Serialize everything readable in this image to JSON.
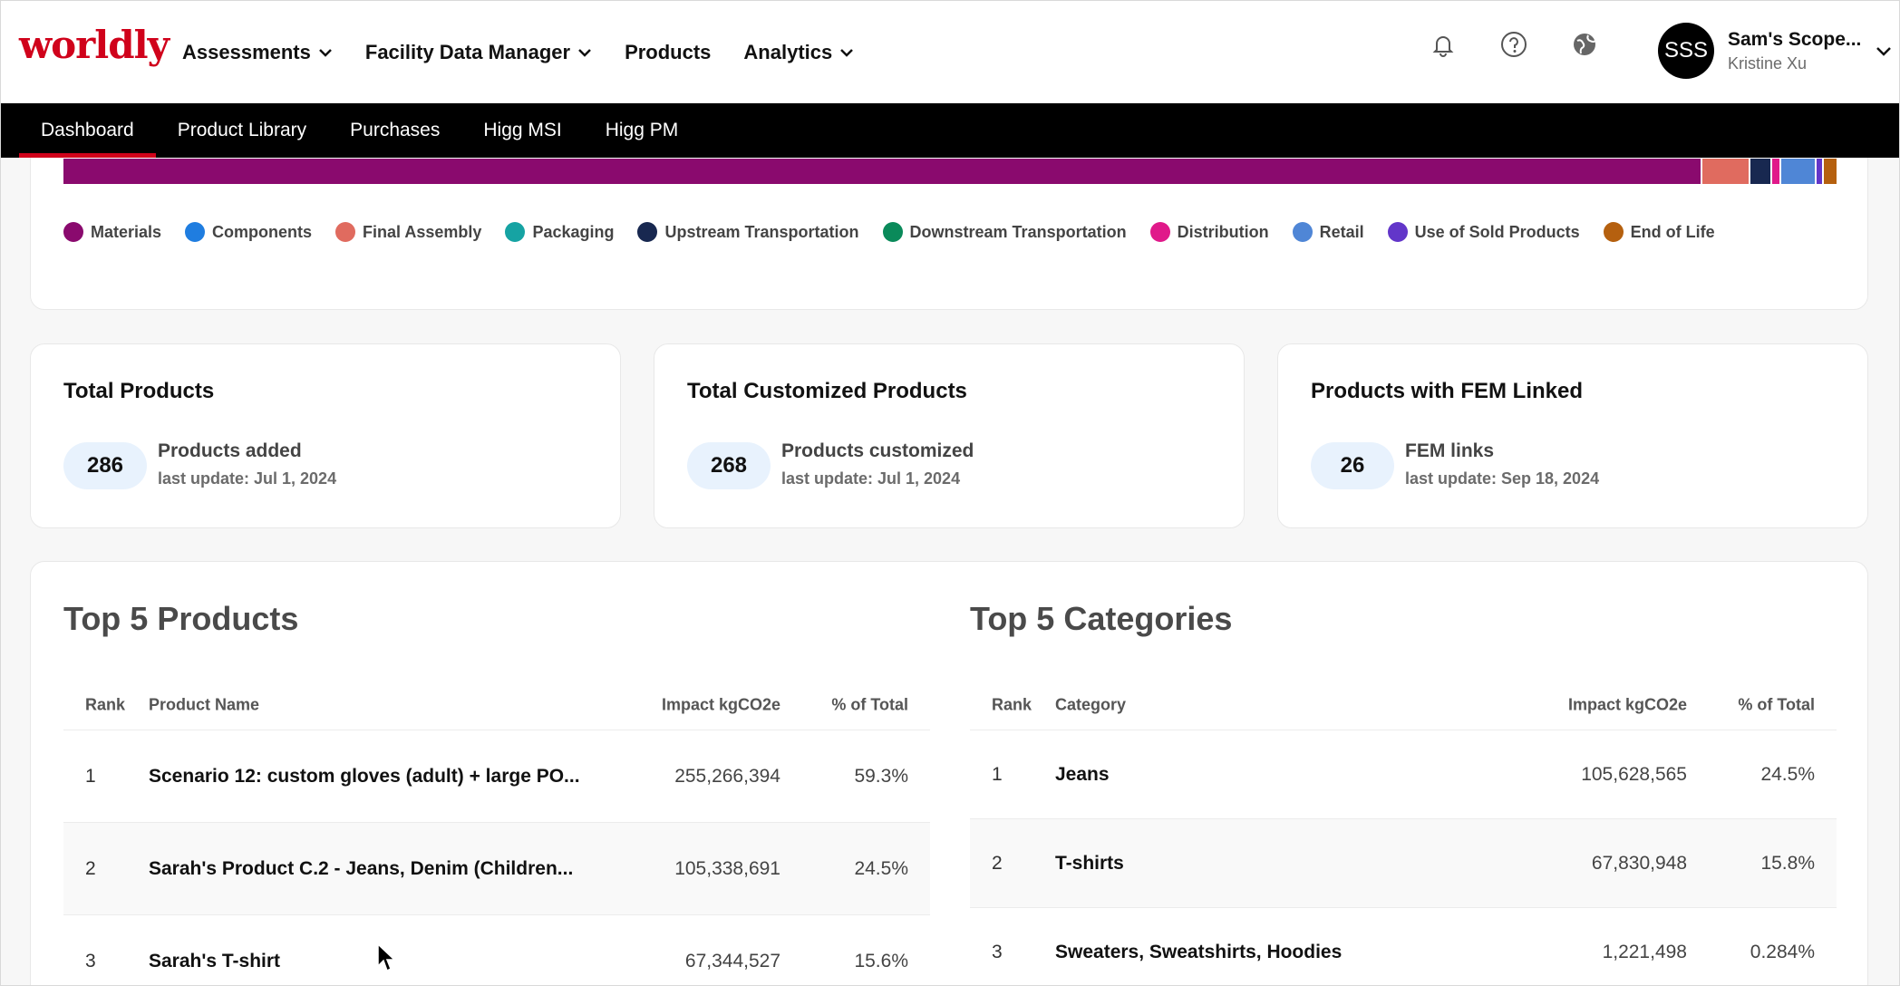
{
  "brand": {
    "logo_text": "worldly",
    "color": "#d0021b"
  },
  "main_nav": [
    {
      "label": "Assessments",
      "dropdown": true
    },
    {
      "label": "Facility Data Manager",
      "dropdown": true
    },
    {
      "label": "Products",
      "dropdown": false
    },
    {
      "label": "Analytics",
      "dropdown": true
    }
  ],
  "header_icons": [
    "bell-icon",
    "help-icon",
    "globe-icon"
  ],
  "account": {
    "initials": "SSS",
    "name": "Sam's Scope...",
    "user": "Kristine Xu"
  },
  "sub_nav": [
    {
      "label": "Dashboard",
      "active": true
    },
    {
      "label": "Product Library",
      "active": false
    },
    {
      "label": "Purchases",
      "active": false
    },
    {
      "label": "Higg MSI",
      "active": false
    },
    {
      "label": "Higg PM",
      "active": false
    }
  ],
  "chart_data": {
    "type": "bar",
    "orientation": "horizontal-stacked",
    "series": [
      {
        "name": "Materials",
        "color": "#8a0a6e",
        "share": 0.917
      },
      {
        "name": "Final Assembly",
        "color": "#e06b5f",
        "share": 0.027
      },
      {
        "name": "Upstream Transportation",
        "color": "#182850",
        "share": 0.012
      },
      {
        "name": "Distribution",
        "color": "#e0198a",
        "share": 0.005
      },
      {
        "name": "Retail",
        "color": "#4f86d6",
        "share": 0.02
      },
      {
        "name": "Use of Sold Products",
        "color": "#6236c9",
        "share": 0.004
      },
      {
        "name": "End of Life",
        "color": "#b5600f",
        "share": 0.008
      }
    ],
    "legend": [
      {
        "name": "Materials",
        "color": "#8a0a6e"
      },
      {
        "name": "Components",
        "color": "#1f7de0"
      },
      {
        "name": "Final Assembly",
        "color": "#e06b5f"
      },
      {
        "name": "Packaging",
        "color": "#16a3a3"
      },
      {
        "name": "Upstream Transportation",
        "color": "#182850"
      },
      {
        "name": "Downstream Transportation",
        "color": "#0a8a5a"
      },
      {
        "name": "Distribution",
        "color": "#e0198a"
      },
      {
        "name": "Retail",
        "color": "#4f86d6"
      },
      {
        "name": "Use of Sold Products",
        "color": "#6236c9"
      },
      {
        "name": "End of Life",
        "color": "#b5600f"
      }
    ],
    "legend_position": "bottom"
  },
  "stats": [
    {
      "title": "Total Products",
      "value": "286",
      "label": "Products added",
      "updated": "last update: Jul 1, 2024"
    },
    {
      "title": "Total Customized Products",
      "value": "268",
      "label": "Products customized",
      "updated": "last update: Jul 1, 2024"
    },
    {
      "title": "Products with FEM Linked",
      "value": "26",
      "label": "FEM links",
      "updated": "last update: Sep 18, 2024"
    }
  ],
  "top_products": {
    "title": "Top 5 Products",
    "columns": [
      "Rank",
      "Product Name",
      "Impact kgCO2e",
      "% of Total"
    ],
    "rows": [
      {
        "rank": "1",
        "name": "Scenario 12: custom gloves (adult) + large PO...",
        "impact": "255,266,394",
        "pct": "59.3%"
      },
      {
        "rank": "2",
        "name": "Sarah's Product C.2 - Jeans, Denim (Children...",
        "impact": "105,338,691",
        "pct": "24.5%"
      },
      {
        "rank": "3",
        "name": "Sarah's T-shirt",
        "impact": "67,344,527",
        "pct": "15.6%"
      }
    ]
  },
  "top_categories": {
    "title": "Top 5 Categories",
    "columns": [
      "Rank",
      "Category",
      "Impact kgCO2e",
      "% of Total"
    ],
    "rows": [
      {
        "rank": "1",
        "name": "Jeans",
        "impact": "105,628,565",
        "pct": "24.5%"
      },
      {
        "rank": "2",
        "name": "T-shirts",
        "impact": "67,830,948",
        "pct": "15.8%"
      },
      {
        "rank": "3",
        "name": "Sweaters, Sweatshirts, Hoodies",
        "impact": "1,221,498",
        "pct": "0.284%"
      }
    ]
  }
}
